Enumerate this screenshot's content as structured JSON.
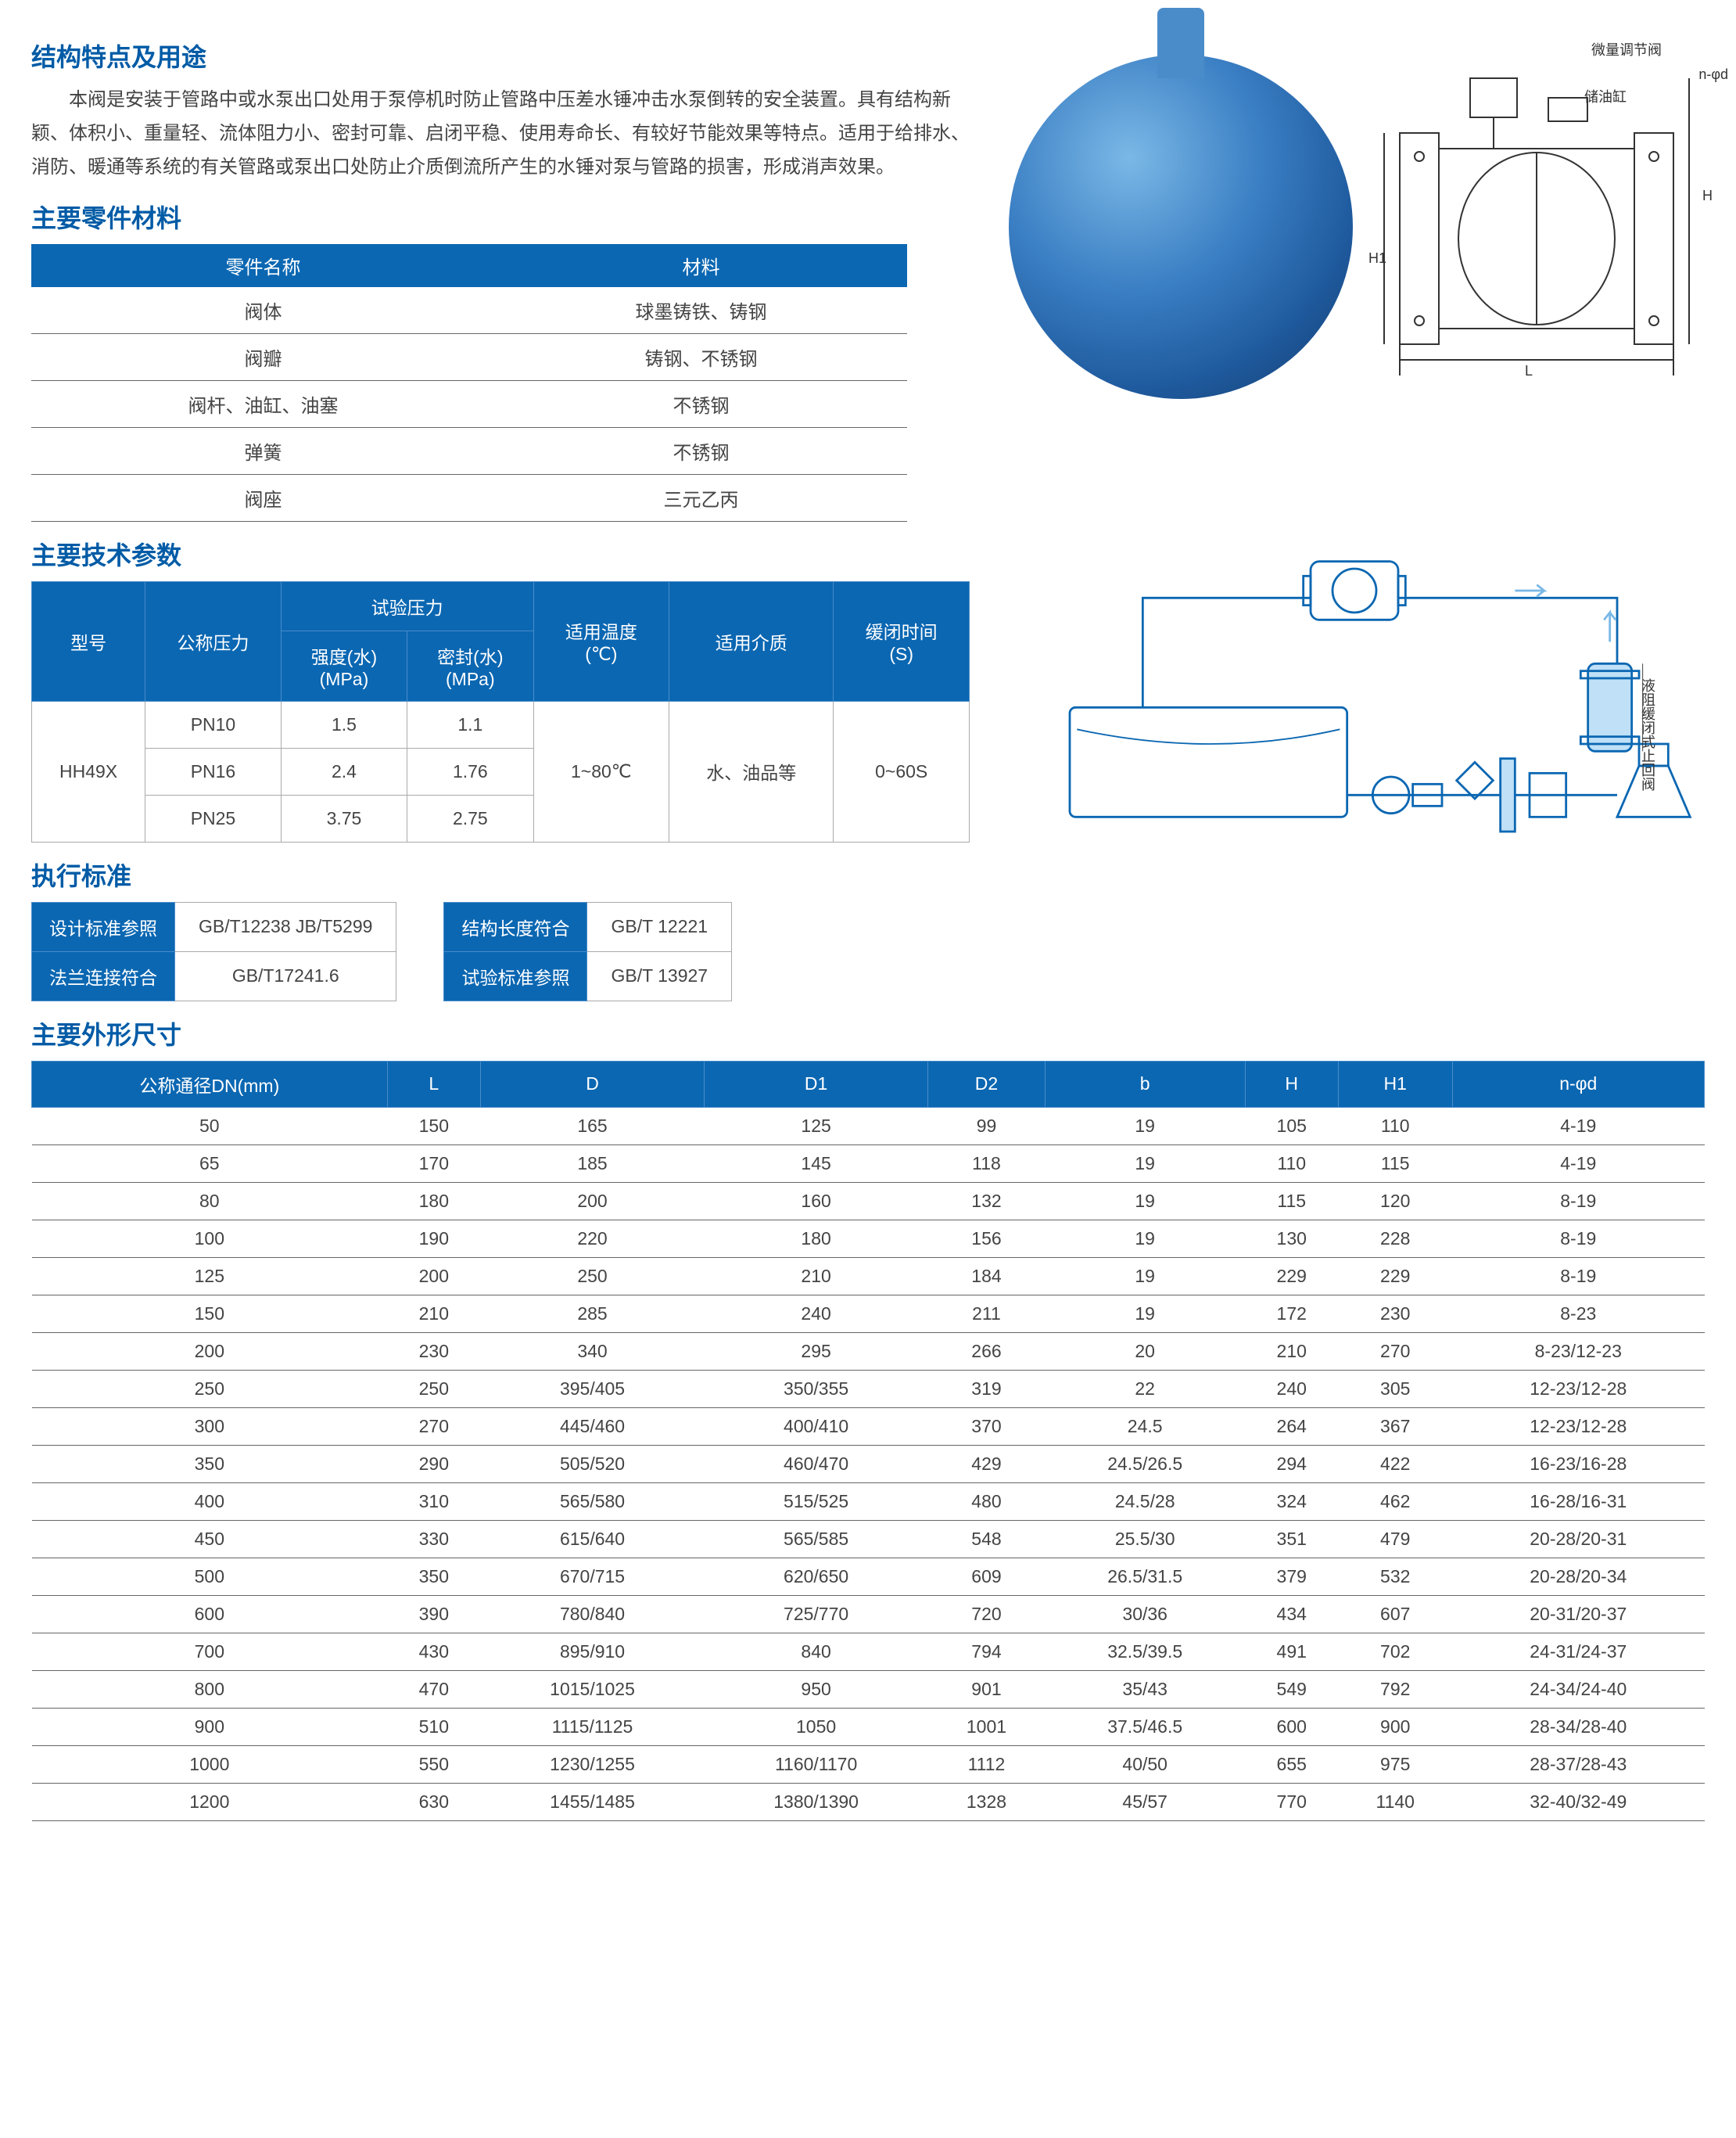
{
  "sections": {
    "features_title": "结构特点及用途",
    "features_text": "本阀是安装于管路中或水泵出口处用于泵停机时防止管路中压差水锤冲击水泵倒转的安全装置。具有结构新颖、体积小、重量轻、流体阻力小、密封可靠、启闭平稳、使用寿命长、有较好节能效果等特点。适用于给排水、消防、暖通等系统的有关管路或泵出口处防止介质倒流所产生的水锤对泵与管路的损害，形成消声效果。",
    "materials_title": "主要零件材料",
    "tech_title": "主要技术参数",
    "std_title": "执行标准",
    "dim_title": "主要外形尺寸"
  },
  "materials": {
    "headers": [
      "零件名称",
      "材料"
    ],
    "rows": [
      [
        "阀体",
        "球墨铸铁、铸钢"
      ],
      [
        "阀瓣",
        "铸钢、不锈钢"
      ],
      [
        "阀杆、油缸、油塞",
        "不锈钢"
      ],
      [
        "弹簧",
        "不锈钢"
      ],
      [
        "阀座",
        "三元乙丙"
      ]
    ]
  },
  "tech": {
    "headers": {
      "model": "型号",
      "nominal_pressure": "公称压力",
      "test_pressure": "试验压力",
      "strength": "强度(水)\n(MPa)",
      "seal": "密封(水)\n(MPa)",
      "temp": "适用温度\n(℃)",
      "medium": "适用介质",
      "close_time": "缓闭时间\n(S)"
    },
    "model": "HH49X",
    "temp_val": "1~80℃",
    "medium_val": "水、油品等",
    "close_val": "0~60S",
    "rows": [
      {
        "pn": "PN10",
        "strength": "1.5",
        "seal": "1.1"
      },
      {
        "pn": "PN16",
        "strength": "2.4",
        "seal": "1.76"
      },
      {
        "pn": "PN25",
        "strength": "3.75",
        "seal": "2.75"
      }
    ]
  },
  "standards": {
    "left": [
      {
        "label": "设计标准参照",
        "val": "GB/T12238 JB/T5299"
      },
      {
        "label": "法兰连接符合",
        "val": "GB/T17241.6"
      }
    ],
    "right": [
      {
        "label": "结构长度符合",
        "val": "GB/T 12221"
      },
      {
        "label": "试验标准参照",
        "val": "GB/T 13927"
      }
    ]
  },
  "dimensions": {
    "headers": [
      "公称通径DN(mm)",
      "L",
      "D",
      "D1",
      "D2",
      "b",
      "H",
      "H1",
      "n-φd"
    ],
    "rows": [
      [
        "50",
        "150",
        "165",
        "125",
        "99",
        "19",
        "105",
        "110",
        "4-19"
      ],
      [
        "65",
        "170",
        "185",
        "145",
        "118",
        "19",
        "110",
        "115",
        "4-19"
      ],
      [
        "80",
        "180",
        "200",
        "160",
        "132",
        "19",
        "115",
        "120",
        "8-19"
      ],
      [
        "100",
        "190",
        "220",
        "180",
        "156",
        "19",
        "130",
        "228",
        "8-19"
      ],
      [
        "125",
        "200",
        "250",
        "210",
        "184",
        "19",
        "229",
        "229",
        "8-19"
      ],
      [
        "150",
        "210",
        "285",
        "240",
        "211",
        "19",
        "172",
        "230",
        "8-23"
      ],
      [
        "200",
        "230",
        "340",
        "295",
        "266",
        "20",
        "210",
        "270",
        "8-23/12-23"
      ],
      [
        "250",
        "250",
        "395/405",
        "350/355",
        "319",
        "22",
        "240",
        "305",
        "12-23/12-28"
      ],
      [
        "300",
        "270",
        "445/460",
        "400/410",
        "370",
        "24.5",
        "264",
        "367",
        "12-23/12-28"
      ],
      [
        "350",
        "290",
        "505/520",
        "460/470",
        "429",
        "24.5/26.5",
        "294",
        "422",
        "16-23/16-28"
      ],
      [
        "400",
        "310",
        "565/580",
        "515/525",
        "480",
        "24.5/28",
        "324",
        "462",
        "16-28/16-31"
      ],
      [
        "450",
        "330",
        "615/640",
        "565/585",
        "548",
        "25.5/30",
        "351",
        "479",
        "20-28/20-31"
      ],
      [
        "500",
        "350",
        "670/715",
        "620/650",
        "609",
        "26.5/31.5",
        "379",
        "532",
        "20-28/20-34"
      ],
      [
        "600",
        "390",
        "780/840",
        "725/770",
        "720",
        "30/36",
        "434",
        "607",
        "20-31/20-37"
      ],
      [
        "700",
        "430",
        "895/910",
        "840",
        "794",
        "32.5/39.5",
        "491",
        "702",
        "24-31/24-37"
      ],
      [
        "800",
        "470",
        "1015/1025",
        "950",
        "901",
        "35/43",
        "549",
        "792",
        "24-34/24-40"
      ],
      [
        "900",
        "510",
        "1115/1125",
        "1050",
        "1001",
        "37.5/46.5",
        "600",
        "900",
        "28-34/28-40"
      ],
      [
        "1000",
        "550",
        "1230/1255",
        "1160/1170",
        "1112",
        "40/50",
        "655",
        "975",
        "28-37/28-43"
      ],
      [
        "1200",
        "630",
        "1455/1485",
        "1380/1390",
        "1328",
        "45/57",
        "770",
        "1140",
        "32-40/32-49"
      ]
    ]
  },
  "diagram_labels": {
    "micro_valve": "微量调节阀",
    "oil_tank": "储油缸",
    "n_phi_d": "n-φd",
    "L": "L",
    "H": "H",
    "H1": "H1",
    "sys_label": "液阻缓闭式止回阀"
  },
  "colors": {
    "blue": "#0b67b2",
    "light_blue": "#4a8cc9",
    "text": "#444444",
    "border": "#666666",
    "diagram_stroke": "#0b67b2"
  }
}
